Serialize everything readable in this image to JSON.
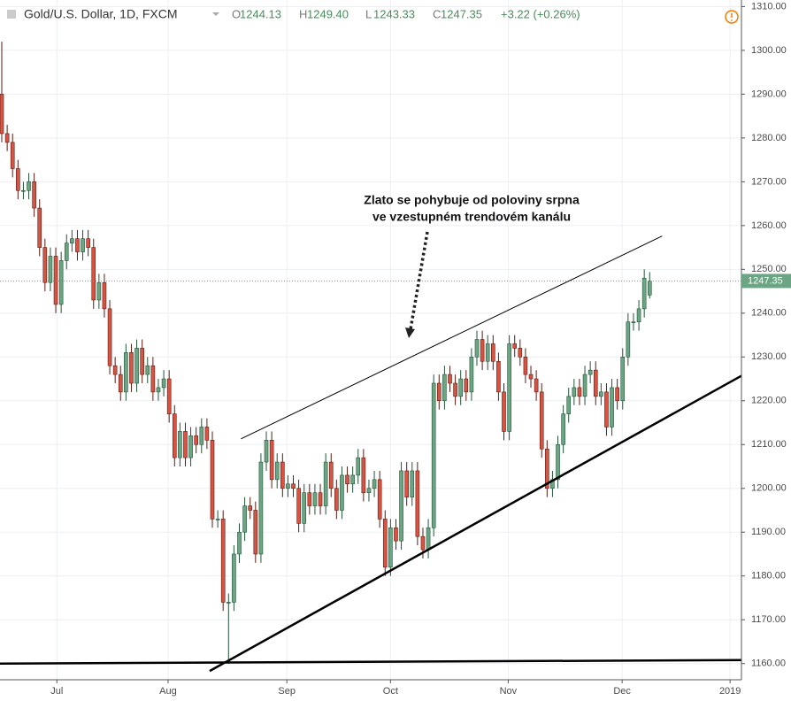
{
  "header": {
    "title": "Gold/U.S. Dollar, 1D, FXCM",
    "labels": [
      "O",
      "H",
      "L",
      "C"
    ],
    "values": [
      "1244.13",
      "1249.40",
      "1243.33",
      "1247.35"
    ],
    "change": "+3.22 (+0.26%)"
  },
  "chart_data": {
    "type": "candlestick",
    "annotation": [
      "Zlato se pohybuje od poloviny srpna",
      "ve vzestupném trendovém kanálu"
    ],
    "up_color": "#6ba583",
    "down_color": "#d75442",
    "grid": true,
    "last_price_line": true,
    "xlim": [
      -0.33,
      137
    ],
    "ylim": [
      1156.3,
      1311.5
    ],
    "xticks": [
      {
        "value": 10.2,
        "label": "Jul"
      },
      {
        "value": 30.8,
        "label": "Aug"
      },
      {
        "value": 52.8,
        "label": "Sep"
      },
      {
        "value": 72,
        "label": "Oct"
      },
      {
        "value": 93.8,
        "label": "Nov"
      },
      {
        "value": 114.9,
        "label": "Dec"
      },
      {
        "value": 134.9,
        "label": "2019"
      }
    ],
    "yticks": [
      {
        "value": 1160,
        "label": "1160.00"
      },
      {
        "value": 1170,
        "label": "1170.00"
      },
      {
        "value": 1180,
        "label": "1180.00"
      },
      {
        "value": 1190,
        "label": "1190.00"
      },
      {
        "value": 1200,
        "label": "1200.00"
      },
      {
        "value": 1210,
        "label": "1210.00"
      },
      {
        "value": 1220,
        "label": "1220.00"
      },
      {
        "value": 1230,
        "label": "1230.00"
      },
      {
        "value": 1240,
        "label": "1240.00"
      },
      {
        "value": 1250,
        "label": "1250.00"
      },
      {
        "value": 1260,
        "label": "1260.00"
      },
      {
        "value": 1270,
        "label": "1270.00"
      },
      {
        "value": 1280,
        "label": "1280.00"
      },
      {
        "value": 1290,
        "label": "1290.00"
      },
      {
        "value": 1300,
        "label": "1300.00"
      },
      {
        "value": 1310,
        "label": "1310.00"
      }
    ],
    "trendlines": [
      {
        "x": [
          44.3,
          122.3
        ],
        "y": [
          1211.3,
          1257.6
        ],
        "width": 1
      },
      {
        "x": [
          38.5,
          137
        ],
        "y": [
          1158.3,
          1225.7
        ],
        "width": 2.5
      },
      {
        "x": [
          -0.33,
          137
        ],
        "y": [
          1160,
          1160.8
        ],
        "width": 2.5
      }
    ],
    "open": [
      1290,
      1281,
      1279,
      1273,
      1268,
      1268,
      1270,
      1264,
      1255,
      1247,
      1253,
      1242,
      1252,
      1256,
      1257,
      1254,
      1257,
      1255,
      1243,
      1247,
      1241,
      1228,
      1226,
      1222,
      1231,
      1224,
      1232,
      1226,
      1228,
      1222,
      1223,
      1225,
      1217,
      1207,
      1213,
      1207,
      1212,
      1210,
      1214,
      1211,
      1193,
      1193,
      1174,
      1174,
      1185,
      1190,
      1196,
      1195,
      1185,
      1206,
      1211,
      1202,
      1206,
      1200,
      1201,
      1200,
      1192,
      1199,
      1196,
      1199,
      1196,
      1206,
      1200,
      1195,
      1203,
      1201,
      1203,
      1207,
      1199,
      1200,
      1202,
      1193,
      1182,
      1191,
      1188,
      1204,
      1198,
      1204,
      1189,
      1186,
      1191,
      1224,
      1220,
      1226,
      1224,
      1221,
      1225,
      1222,
      1230,
      1234,
      1229,
      1233,
      1229,
      1222,
      1213,
      1233,
      1232,
      1230,
      1226,
      1225,
      1222,
      1209,
      1200,
      1202,
      1210,
      1217,
      1221,
      1223,
      1221,
      1226,
      1227,
      1221,
      1222,
      1214,
      1223,
      1220,
      1230,
      1238,
      1238,
      1241,
      1244.13
    ],
    "high": [
      1302,
      1283,
      1281,
      1275,
      1270,
      1272,
      1272,
      1266,
      1257,
      1255,
      1255,
      1254,
      1258,
      1259,
      1259,
      1259,
      1259,
      1257,
      1249,
      1249,
      1243,
      1230,
      1228,
      1233,
      1233,
      1234,
      1234,
      1230,
      1230,
      1225,
      1227,
      1227,
      1219,
      1215,
      1215,
      1214,
      1214,
      1216,
      1216,
      1213,
      1195,
      1195,
      1176,
      1187,
      1192,
      1198,
      1198,
      1197,
      1208,
      1213,
      1213,
      1208,
      1208,
      1203,
      1203,
      1202,
      1201,
      1201,
      1201,
      1201,
      1208,
      1208,
      1202,
      1205,
      1205,
      1205,
      1209,
      1209,
      1202,
      1204,
      1204,
      1195,
      1193,
      1193,
      1206,
      1206,
      1206,
      1206,
      1191,
      1193,
      1226,
      1226,
      1228,
      1228,
      1226,
      1227,
      1227,
      1232,
      1236,
      1236,
      1235,
      1235,
      1231,
      1224,
      1235,
      1235,
      1234,
      1232,
      1228,
      1227,
      1224,
      1211,
      1204,
      1212,
      1219,
      1223,
      1225,
      1225,
      1228,
      1229,
      1229,
      1224,
      1224,
      1225,
      1225,
      1232,
      1240,
      1240,
      1243,
      1250,
      1249.4
    ],
    "low": [
      1279,
      1277,
      1271,
      1266,
      1266,
      1266,
      1262,
      1253,
      1245,
      1245,
      1240,
      1240,
      1250,
      1254,
      1252,
      1252,
      1253,
      1241,
      1241,
      1239,
      1226,
      1224,
      1220,
      1220,
      1222,
      1222,
      1224,
      1224,
      1220,
      1220,
      1221,
      1215,
      1205,
      1205,
      1205,
      1205,
      1208,
      1208,
      1209,
      1191,
      1191,
      1172,
      1160,
      1172,
      1183,
      1188,
      1193,
      1183,
      1183,
      1204,
      1200,
      1200,
      1198,
      1198,
      1198,
      1190,
      1190,
      1194,
      1194,
      1194,
      1194,
      1198,
      1193,
      1193,
      1199,
      1199,
      1201,
      1197,
      1197,
      1198,
      1191,
      1180,
      1180,
      1186,
      1186,
      1196,
      1196,
      1187,
      1184,
      1184,
      1189,
      1218,
      1218,
      1222,
      1219,
      1219,
      1220,
      1220,
      1228,
      1227,
      1227,
      1227,
      1220,
      1211,
      1211,
      1230,
      1228,
      1224,
      1223,
      1220,
      1207,
      1198,
      1198,
      1200,
      1208,
      1215,
      1219,
      1219,
      1219,
      1224,
      1219,
      1219,
      1212,
      1212,
      1218,
      1218,
      1228,
      1236,
      1236,
      1239,
      1243.33
    ],
    "close": [
      1281,
      1279,
      1273,
      1268,
      1268,
      1270,
      1264,
      1255,
      1247,
      1253,
      1242,
      1252,
      1256,
      1257,
      1254,
      1257,
      1255,
      1243,
      1247,
      1241,
      1228,
      1226,
      1222,
      1231,
      1224,
      1232,
      1226,
      1228,
      1222,
      1223,
      1225,
      1217,
      1207,
      1213,
      1207,
      1212,
      1210,
      1214,
      1211,
      1193,
      1193,
      1174,
      1174,
      1185,
      1190,
      1196,
      1195,
      1185,
      1206,
      1211,
      1202,
      1206,
      1200,
      1201,
      1200,
      1192,
      1199,
      1196,
      1199,
      1196,
      1206,
      1200,
      1195,
      1203,
      1201,
      1203,
      1207,
      1199,
      1200,
      1202,
      1193,
      1182,
      1191,
      1188,
      1204,
      1198,
      1204,
      1189,
      1186,
      1191,
      1224,
      1220,
      1226,
      1224,
      1221,
      1225,
      1222,
      1230,
      1234,
      1229,
      1233,
      1229,
      1222,
      1213,
      1233,
      1232,
      1230,
      1226,
      1225,
      1222,
      1209,
      1200,
      1202,
      1210,
      1217,
      1221,
      1223,
      1221,
      1226,
      1227,
      1221,
      1222,
      1214,
      1223,
      1220,
      1230,
      1238,
      1238,
      1241,
      1248,
      1247.35
    ]
  }
}
